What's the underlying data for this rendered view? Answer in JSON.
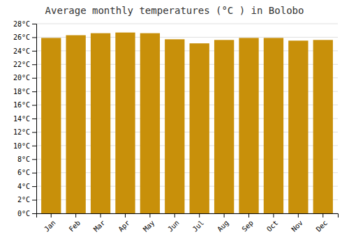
{
  "chart_data": {
    "type": "bar",
    "title": "Average monthly temperatures (°C ) in Bolobo",
    "categories": [
      "Jan",
      "Feb",
      "Mar",
      "Apr",
      "May",
      "Jun",
      "Jul",
      "Aug",
      "Sep",
      "Oct",
      "Nov",
      "Dec"
    ],
    "values": [
      25.9,
      26.3,
      26.6,
      26.7,
      26.6,
      25.7,
      25.1,
      25.6,
      25.9,
      25.9,
      25.5,
      25.6
    ],
    "color": "#C8900A",
    "ylim": [
      0,
      28
    ],
    "yticks": [
      {
        "value": 0,
        "label": "0°C"
      },
      {
        "value": 2,
        "label": "2°C"
      },
      {
        "value": 4,
        "label": "4°C"
      },
      {
        "value": 6,
        "label": "6°C"
      },
      {
        "value": 8,
        "label": "8°C"
      },
      {
        "value": 10,
        "label": "10°C"
      },
      {
        "value": 12,
        "label": "12°C"
      },
      {
        "value": 14,
        "label": "14°C"
      },
      {
        "value": 16,
        "label": "16°C"
      },
      {
        "value": 18,
        "label": "18°C"
      },
      {
        "value": 20,
        "label": "20°C"
      },
      {
        "value": 22,
        "label": "22°C"
      },
      {
        "value": 24,
        "label": "24°C"
      },
      {
        "value": 26,
        "label": "26°C"
      },
      {
        "value": 28,
        "label": "28°C"
      }
    ],
    "grid": true
  }
}
